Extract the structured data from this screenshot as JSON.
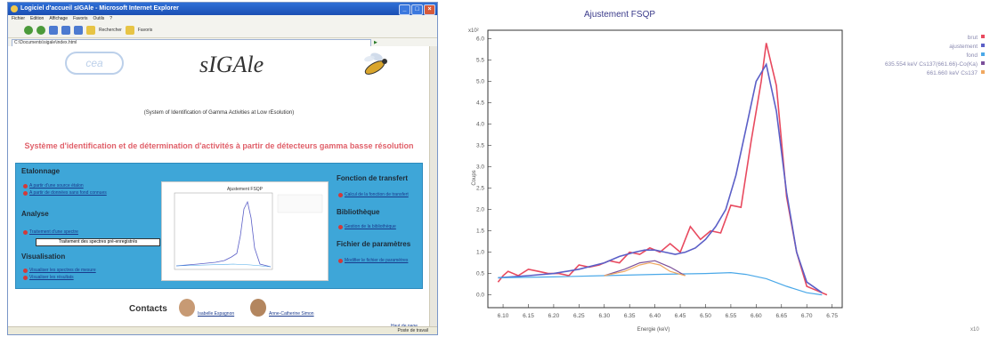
{
  "browser": {
    "title": "Logiciel d'accueil sIGAle - Microsoft Internet Explorer",
    "menu": [
      "Fichier",
      "Edition",
      "Affichage",
      "Favoris",
      "Outils",
      "?"
    ],
    "toolbar": {
      "search_label": "Rechercher",
      "favorites_label": "Favoris"
    },
    "address": "C:\\Documents\\sigale\\index.html",
    "status": "Poste de travail"
  },
  "page": {
    "logo_text": "cea",
    "title": "sIGAle",
    "subtitle": "(System of Identification of Gamma Activities at Low rEsolution)",
    "headline": "Système d'identification et de détermination d'activités à partir de détecteurs gamma basse résolution",
    "sections": {
      "etalonnage": {
        "title": "Etalonnage",
        "links": [
          "A partir d'une source étalon",
          "A partir de données sans fond connues"
        ]
      },
      "analyse": {
        "title": "Analyse",
        "links": [
          "Traitement d'une spectre"
        ],
        "tooltip": "Traitement des spectres pré-enregistrés"
      },
      "visualisation": {
        "title": "Visualisation",
        "links": [
          "Visualiser les spectres de mesure",
          "Visualiser les résultats"
        ]
      },
      "transfert": {
        "title": "Fonction de transfert",
        "links": [
          "Calcul de la fonction de transfert"
        ]
      },
      "bibliotheque": {
        "title": "Bibliothèque",
        "links": [
          "Gestion de la bibliothèque"
        ]
      },
      "parametres": {
        "title": "Fichier de paramètres",
        "links": [
          "Modifier le fichier de paramètres"
        ]
      }
    },
    "thumbnail_title": "Ajustement FSQP",
    "contacts": {
      "label": "Contacts",
      "people": [
        "Isabelle Espagnon",
        "Anne-Catherine Simon"
      ]
    },
    "back_link": "Haut de page"
  },
  "chart_data": {
    "type": "line",
    "title": "Ajustement FSQP",
    "xlabel": "Energie (keV)",
    "ylabel": "Coups",
    "y_multiplier": "x10²",
    "x_multiplier": "x10",
    "xlim": [
      6.07,
      6.77
    ],
    "ylim": [
      -0.3,
      6.2
    ],
    "xticks": [
      "6.10",
      "6.15",
      "6.20",
      "6.25",
      "6.30",
      "6.35",
      "6.40",
      "6.45",
      "6.50",
      "6.55",
      "6.60",
      "6.65",
      "6.70",
      "6.75"
    ],
    "yticks": [
      "0.0",
      "0.5",
      "1.0",
      "1.5",
      "2.0",
      "2.5",
      "3.0",
      "3.5",
      "4.0",
      "4.5",
      "5.0",
      "5.5",
      "6.0"
    ],
    "legend_position": "top-right",
    "series": [
      {
        "name": "brut",
        "color": "#e84a5f",
        "x": [
          6.09,
          6.1,
          6.11,
          6.13,
          6.15,
          6.17,
          6.19,
          6.21,
          6.23,
          6.25,
          6.27,
          6.29,
          6.31,
          6.33,
          6.35,
          6.37,
          6.39,
          6.41,
          6.43,
          6.45,
          6.47,
          6.49,
          6.51,
          6.53,
          6.55,
          6.57,
          6.59,
          6.61,
          6.62,
          6.64,
          6.66,
          6.68,
          6.7,
          6.72,
          6.74
        ],
        "y": [
          0.3,
          0.45,
          0.55,
          0.45,
          0.6,
          0.55,
          0.5,
          0.5,
          0.45,
          0.7,
          0.65,
          0.7,
          0.8,
          0.75,
          1.0,
          0.95,
          1.1,
          1.0,
          1.2,
          1.0,
          1.6,
          1.3,
          1.5,
          1.45,
          2.1,
          2.05,
          3.6,
          5.0,
          5.9,
          4.9,
          2.3,
          1.0,
          0.2,
          0.1,
          0.0
        ]
      },
      {
        "name": "ajustement",
        "color": "#5b5fc7",
        "x": [
          6.09,
          6.15,
          6.2,
          6.25,
          6.3,
          6.33,
          6.36,
          6.38,
          6.4,
          6.42,
          6.44,
          6.46,
          6.48,
          6.5,
          6.52,
          6.54,
          6.56,
          6.58,
          6.6,
          6.62,
          6.64,
          6.66,
          6.68,
          6.7,
          6.73
        ],
        "y": [
          0.4,
          0.45,
          0.5,
          0.6,
          0.75,
          0.9,
          1.0,
          1.05,
          1.05,
          1.0,
          0.95,
          1.0,
          1.1,
          1.3,
          1.6,
          2.0,
          2.8,
          3.9,
          5.0,
          5.4,
          4.3,
          2.4,
          1.0,
          0.3,
          0.05
        ]
      },
      {
        "name": "fond",
        "color": "#4aa8e8",
        "x": [
          6.09,
          6.2,
          6.3,
          6.4,
          6.5,
          6.55,
          6.58,
          6.62,
          6.66,
          6.7,
          6.73
        ],
        "y": [
          0.4,
          0.42,
          0.45,
          0.48,
          0.5,
          0.52,
          0.48,
          0.38,
          0.2,
          0.05,
          0.0
        ]
      },
      {
        "name": "635.554 keV Cs137(661.66)-Co(Ka)",
        "color": "#7b4f9a",
        "x": [
          6.3,
          6.34,
          6.37,
          6.4,
          6.43,
          6.46
        ],
        "y": [
          0.45,
          0.6,
          0.75,
          0.8,
          0.65,
          0.45
        ]
      },
      {
        "name": "661.660 keV Cs137",
        "color": "#f0a860",
        "x": [
          6.3,
          6.34,
          6.37,
          6.39,
          6.41,
          6.43,
          6.46
        ],
        "y": [
          0.45,
          0.55,
          0.7,
          0.75,
          0.7,
          0.55,
          0.45
        ]
      }
    ]
  },
  "colors": {
    "panel": "#3ea6d8",
    "headline": "#e0606a",
    "chart_title": "#3a3a8a"
  },
  "icons": [
    "ie-logo-icon",
    "back-icon",
    "forward-icon",
    "stop-icon",
    "refresh-icon",
    "home-icon",
    "search-icon",
    "favorites-icon",
    "bullet-icon",
    "bee-logo-icon"
  ]
}
